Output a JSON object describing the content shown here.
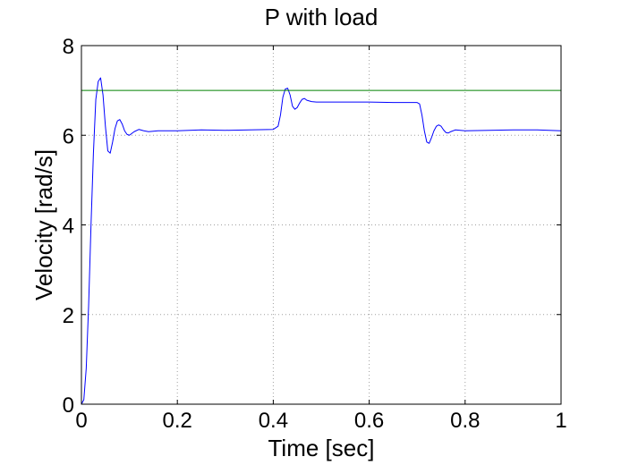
{
  "chart_data": {
    "type": "line",
    "title": "P with load",
    "xlabel": "Time [sec]",
    "ylabel": "Velocity [rad/s]",
    "xlim": [
      0,
      1
    ],
    "ylim": [
      0,
      8
    ],
    "xticks": [
      0,
      0.2,
      0.4,
      0.6,
      0.8,
      1
    ],
    "xtick_labels": [
      "0",
      "0.2",
      "0.4",
      "0.6",
      "0.8",
      "1"
    ],
    "yticks": [
      0,
      2,
      4,
      6,
      8
    ],
    "ytick_labels": [
      "0",
      "2",
      "4",
      "6",
      "8"
    ],
    "grid": true,
    "series": [
      {
        "color": "#0000ff",
        "x": [
          0,
          0.005,
          0.01,
          0.015,
          0.02,
          0.025,
          0.03,
          0.035,
          0.04,
          0.045,
          0.05,
          0.055,
          0.06,
          0.065,
          0.07,
          0.075,
          0.08,
          0.085,
          0.09,
          0.095,
          0.1,
          0.11,
          0.12,
          0.13,
          0.14,
          0.16,
          0.2,
          0.25,
          0.3,
          0.35,
          0.4,
          0.41,
          0.415,
          0.42,
          0.425,
          0.43,
          0.435,
          0.44,
          0.445,
          0.45,
          0.455,
          0.46,
          0.465,
          0.47,
          0.48,
          0.49,
          0.5,
          0.55,
          0.6,
          0.65,
          0.7,
          0.705,
          0.71,
          0.715,
          0.72,
          0.725,
          0.73,
          0.735,
          0.74,
          0.745,
          0.75,
          0.755,
          0.76,
          0.765,
          0.77,
          0.78,
          0.79,
          0.8,
          0.85,
          0.9,
          0.95,
          1.0
        ],
        "y": [
          0,
          0.1,
          0.8,
          2.2,
          4.0,
          5.6,
          6.8,
          7.2,
          7.28,
          6.9,
          6.2,
          5.65,
          5.6,
          5.85,
          6.15,
          6.32,
          6.35,
          6.25,
          6.1,
          6.02,
          6.0,
          6.08,
          6.13,
          6.1,
          6.08,
          6.1,
          6.1,
          6.12,
          6.11,
          6.12,
          6.13,
          6.2,
          6.45,
          6.85,
          7.03,
          7.05,
          6.9,
          6.65,
          6.58,
          6.62,
          6.72,
          6.8,
          6.82,
          6.78,
          6.75,
          6.74,
          6.74,
          6.74,
          6.74,
          6.73,
          6.73,
          6.7,
          6.45,
          6.1,
          5.85,
          5.82,
          5.95,
          6.1,
          6.2,
          6.23,
          6.2,
          6.12,
          6.06,
          6.05,
          6.08,
          6.12,
          6.11,
          6.1,
          6.11,
          6.12,
          6.12,
          6.1
        ]
      },
      {
        "color": "#008000",
        "x": [
          0,
          1
        ],
        "y": [
          7,
          7
        ]
      }
    ]
  }
}
